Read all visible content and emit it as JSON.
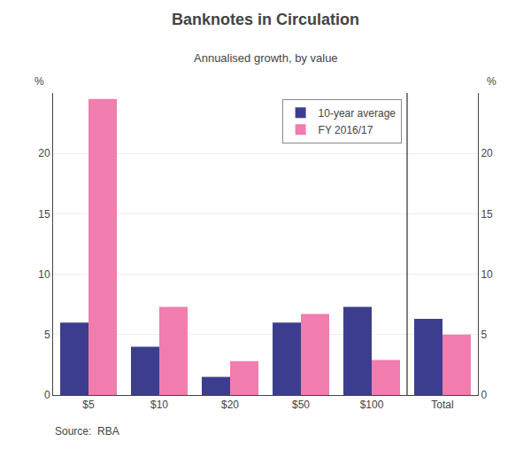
{
  "chart_data": {
    "type": "bar",
    "title": "Banknotes in Circulation",
    "subtitle": "Annualised growth, by value",
    "categories": [
      "$5",
      "$10",
      "$20",
      "$50",
      "$100",
      "Total"
    ],
    "series": [
      {
        "name": "10-year average",
        "color": "#3d3d8f",
        "values": [
          6.0,
          4.0,
          1.5,
          6.0,
          7.3,
          6.3
        ]
      },
      {
        "name": "FY 2016/17",
        "color": "#f07dae",
        "values": [
          24.5,
          7.3,
          2.8,
          6.7,
          2.9,
          5.0
        ]
      }
    ],
    "ylabel": "%",
    "y2label": "%",
    "ylim": [
      0,
      25
    ],
    "yticks": [
      0,
      5,
      10,
      15,
      20
    ],
    "y2lim": [
      0,
      25
    ],
    "y2ticks": [
      0,
      5,
      10,
      15,
      20
    ],
    "grid": true,
    "legend": "upper right",
    "source": "Source:  RBA"
  }
}
